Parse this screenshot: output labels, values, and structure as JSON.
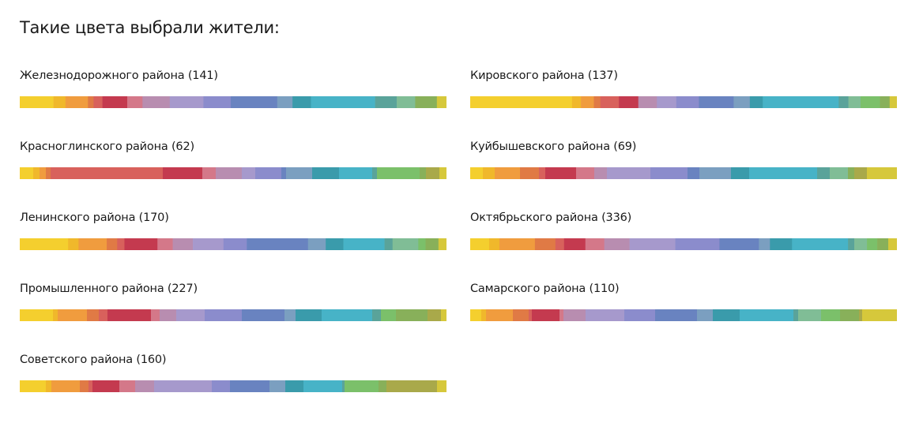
{
  "title": "Такие цвета выбрали жители:",
  "chart_data": {
    "type": "bar",
    "districts": [
      {
        "label": "Железнодорожного района (141)",
        "segments": [
          {
            "color": "#f4cf2e",
            "value": 42
          },
          {
            "color": "#f0b82b",
            "value": 15
          },
          {
            "color": "#f09c3e",
            "value": 28
          },
          {
            "color": "#e07a45",
            "value": 7
          },
          {
            "color": "#d8615c",
            "value": 11
          },
          {
            "color": "#c43a4f",
            "value": 31
          },
          {
            "color": "#d47889",
            "value": 19
          },
          {
            "color": "#b88db0",
            "value": 34
          },
          {
            "color": "#a699cc",
            "value": 42
          },
          {
            "color": "#8b8ccc",
            "value": 34
          },
          {
            "color": "#6983c0",
            "value": 58
          },
          {
            "color": "#7b9fc0",
            "value": 19
          },
          {
            "color": "#3a9bab",
            "value": 23
          },
          {
            "color": "#47b3c7",
            "value": 80
          },
          {
            "color": "#5aa39a",
            "value": 27
          },
          {
            "color": "#80bd96",
            "value": 23
          },
          {
            "color": "#88b05a",
            "value": 27
          },
          {
            "color": "#d6c83b",
            "value": 12
          }
        ]
      },
      {
        "label": "Кировского района (137)",
        "segments": [
          {
            "color": "#f4cf2e",
            "value": 126
          },
          {
            "color": "#f0b82b",
            "value": 11
          },
          {
            "color": "#f09c3e",
            "value": 16
          },
          {
            "color": "#e07a45",
            "value": 8
          },
          {
            "color": "#d8615c",
            "value": 23
          },
          {
            "color": "#c43a4f",
            "value": 24
          },
          {
            "color": "#b88db0",
            "value": 23
          },
          {
            "color": "#a699cc",
            "value": 24
          },
          {
            "color": "#8b8ccc",
            "value": 28
          },
          {
            "color": "#6983c0",
            "value": 43
          },
          {
            "color": "#7b9fc0",
            "value": 20
          },
          {
            "color": "#3a9bab",
            "value": 16
          },
          {
            "color": "#47b3c7",
            "value": 94
          },
          {
            "color": "#5aa39a",
            "value": 12
          },
          {
            "color": "#80bd96",
            "value": 15
          },
          {
            "color": "#7bc06a",
            "value": 24
          },
          {
            "color": "#88b05a",
            "value": 12
          },
          {
            "color": "#d6c83b",
            "value": 9
          }
        ]
      },
      {
        "label": "Красноглинского района (62)",
        "segments": [
          {
            "color": "#f4cf2e",
            "value": 17
          },
          {
            "color": "#f0b82b",
            "value": 8
          },
          {
            "color": "#f09c3e",
            "value": 8
          },
          {
            "color": "#e07a45",
            "value": 6
          },
          {
            "color": "#d8615c",
            "value": 142
          },
          {
            "color": "#c43a4f",
            "value": 50
          },
          {
            "color": "#d47889",
            "value": 17
          },
          {
            "color": "#b88db0",
            "value": 33
          },
          {
            "color": "#a699cc",
            "value": 17
          },
          {
            "color": "#8b8ccc",
            "value": 33
          },
          {
            "color": "#6983c0",
            "value": 6
          },
          {
            "color": "#7b9fc0",
            "value": 33
          },
          {
            "color": "#3a9bab",
            "value": 34
          },
          {
            "color": "#47b3c7",
            "value": 42
          },
          {
            "color": "#5aa39a",
            "value": 6
          },
          {
            "color": "#7bc06a",
            "value": 54
          },
          {
            "color": "#88b05a",
            "value": 8
          },
          {
            "color": "#a9a94a",
            "value": 17
          },
          {
            "color": "#d6c83b",
            "value": 9
          }
        ]
      },
      {
        "label": "Куйбышевского района (69)",
        "segments": [
          {
            "color": "#f4cf2e",
            "value": 16
          },
          {
            "color": "#f0b82b",
            "value": 15
          },
          {
            "color": "#f09c3e",
            "value": 32
          },
          {
            "color": "#e07a45",
            "value": 24
          },
          {
            "color": "#d8615c",
            "value": 8
          },
          {
            "color": "#c43a4f",
            "value": 39
          },
          {
            "color": "#d47889",
            "value": 23
          },
          {
            "color": "#b88db0",
            "value": 16
          },
          {
            "color": "#a699cc",
            "value": 55
          },
          {
            "color": "#8b8ccc",
            "value": 47
          },
          {
            "color": "#6983c0",
            "value": 15
          },
          {
            "color": "#7b9fc0",
            "value": 40
          },
          {
            "color": "#3a9bab",
            "value": 23
          },
          {
            "color": "#47b3c7",
            "value": 86
          },
          {
            "color": "#5aa39a",
            "value": 16
          },
          {
            "color": "#80bd96",
            "value": 23
          },
          {
            "color": "#88b05a",
            "value": 8
          },
          {
            "color": "#a9a94a",
            "value": 16
          },
          {
            "color": "#d6c83b",
            "value": 38
          }
        ]
      },
      {
        "label": "Ленинского района (170)",
        "segments": [
          {
            "color": "#f4cf2e",
            "value": 60
          },
          {
            "color": "#f0b82b",
            "value": 13
          },
          {
            "color": "#f09c3e",
            "value": 35
          },
          {
            "color": "#e07a45",
            "value": 13
          },
          {
            "color": "#d8615c",
            "value": 9
          },
          {
            "color": "#c43a4f",
            "value": 41
          },
          {
            "color": "#d47889",
            "value": 19
          },
          {
            "color": "#b88db0",
            "value": 25
          },
          {
            "color": "#a699cc",
            "value": 38
          },
          {
            "color": "#8b8ccc",
            "value": 29
          },
          {
            "color": "#6983c0",
            "value": 76
          },
          {
            "color": "#7b9fc0",
            "value": 22
          },
          {
            "color": "#3a9bab",
            "value": 22
          },
          {
            "color": "#47b3c7",
            "value": 51
          },
          {
            "color": "#5aa39a",
            "value": 10
          },
          {
            "color": "#80bd96",
            "value": 32
          },
          {
            "color": "#7bc06a",
            "value": 9
          },
          {
            "color": "#88b05a",
            "value": 16
          },
          {
            "color": "#d6c83b",
            "value": 10
          }
        ]
      },
      {
        "label": "Октябрьского района (336)",
        "segments": [
          {
            "color": "#f4cf2e",
            "value": 24
          },
          {
            "color": "#f0b82b",
            "value": 13
          },
          {
            "color": "#f09c3e",
            "value": 45
          },
          {
            "color": "#e07a45",
            "value": 26
          },
          {
            "color": "#d8615c",
            "value": 11
          },
          {
            "color": "#c43a4f",
            "value": 27
          },
          {
            "color": "#d47889",
            "value": 24
          },
          {
            "color": "#b88db0",
            "value": 32
          },
          {
            "color": "#a699cc",
            "value": 58
          },
          {
            "color": "#8b8ccc",
            "value": 56
          },
          {
            "color": "#6983c0",
            "value": 50
          },
          {
            "color": "#7b9fc0",
            "value": 14
          },
          {
            "color": "#3a9bab",
            "value": 28
          },
          {
            "color": "#47b3c7",
            "value": 71
          },
          {
            "color": "#5aa39a",
            "value": 8
          },
          {
            "color": "#80bd96",
            "value": 16
          },
          {
            "color": "#7bc06a",
            "value": 13
          },
          {
            "color": "#88b05a",
            "value": 14
          },
          {
            "color": "#d6c83b",
            "value": 11
          }
        ]
      },
      {
        "label": "Промышленного района (227)",
        "segments": [
          {
            "color": "#f4cf2e",
            "value": 42
          },
          {
            "color": "#f0b82b",
            "value": 6
          },
          {
            "color": "#f09c3e",
            "value": 37
          },
          {
            "color": "#e07a45",
            "value": 15
          },
          {
            "color": "#d8615c",
            "value": 11
          },
          {
            "color": "#c43a4f",
            "value": 55
          },
          {
            "color": "#d47889",
            "value": 11
          },
          {
            "color": "#b88db0",
            "value": 21
          },
          {
            "color": "#a699cc",
            "value": 36
          },
          {
            "color": "#8b8ccc",
            "value": 47
          },
          {
            "color": "#6983c0",
            "value": 54
          },
          {
            "color": "#7b9fc0",
            "value": 14
          },
          {
            "color": "#3a9bab",
            "value": 33
          },
          {
            "color": "#47b3c7",
            "value": 64
          },
          {
            "color": "#5aa39a",
            "value": 11
          },
          {
            "color": "#7bc06a",
            "value": 19
          },
          {
            "color": "#88b05a",
            "value": 40
          },
          {
            "color": "#a9a94a",
            "value": 17
          },
          {
            "color": "#d6c83b",
            "value": 7
          }
        ]
      },
      {
        "label": "Самарского района (110)",
        "segments": [
          {
            "color": "#f4cf2e",
            "value": 14
          },
          {
            "color": "#f0b82b",
            "value": 6
          },
          {
            "color": "#f09c3e",
            "value": 34
          },
          {
            "color": "#e07a45",
            "value": 20
          },
          {
            "color": "#d8615c",
            "value": 4
          },
          {
            "color": "#c43a4f",
            "value": 35
          },
          {
            "color": "#d47889",
            "value": 5
          },
          {
            "color": "#b88db0",
            "value": 28
          },
          {
            "color": "#a699cc",
            "value": 49
          },
          {
            "color": "#8b8ccc",
            "value": 39
          },
          {
            "color": "#6983c0",
            "value": 53
          },
          {
            "color": "#7b9fc0",
            "value": 20
          },
          {
            "color": "#3a9bab",
            "value": 34
          },
          {
            "color": "#47b3c7",
            "value": 68
          },
          {
            "color": "#5aa39a",
            "value": 6
          },
          {
            "color": "#80bd96",
            "value": 29
          },
          {
            "color": "#7bc06a",
            "value": 24
          },
          {
            "color": "#88b05a",
            "value": 24
          },
          {
            "color": "#a9a94a",
            "value": 4
          },
          {
            "color": "#d6c83b",
            "value": 44
          }
        ]
      },
      {
        "label": "Советского района (160)",
        "segments": [
          {
            "color": "#f4cf2e",
            "value": 33
          },
          {
            "color": "#f0b82b",
            "value": 7
          },
          {
            "color": "#f09c3e",
            "value": 36
          },
          {
            "color": "#e07a45",
            "value": 11
          },
          {
            "color": "#d8615c",
            "value": 5
          },
          {
            "color": "#c43a4f",
            "value": 34
          },
          {
            "color": "#d47889",
            "value": 20
          },
          {
            "color": "#b88db0",
            "value": 24
          },
          {
            "color": "#a699cc",
            "value": 73
          },
          {
            "color": "#8b8ccc",
            "value": 23
          },
          {
            "color": "#6983c0",
            "value": 50
          },
          {
            "color": "#7b9fc0",
            "value": 20
          },
          {
            "color": "#3a9bab",
            "value": 23
          },
          {
            "color": "#47b3c7",
            "value": 49
          },
          {
            "color": "#5aa39a",
            "value": 3
          },
          {
            "color": "#7bc06a",
            "value": 43
          },
          {
            "color": "#88b05a",
            "value": 10
          },
          {
            "color": "#a9a94a",
            "value": 64
          },
          {
            "color": "#d6c83b",
            "value": 12
          }
        ]
      }
    ]
  }
}
